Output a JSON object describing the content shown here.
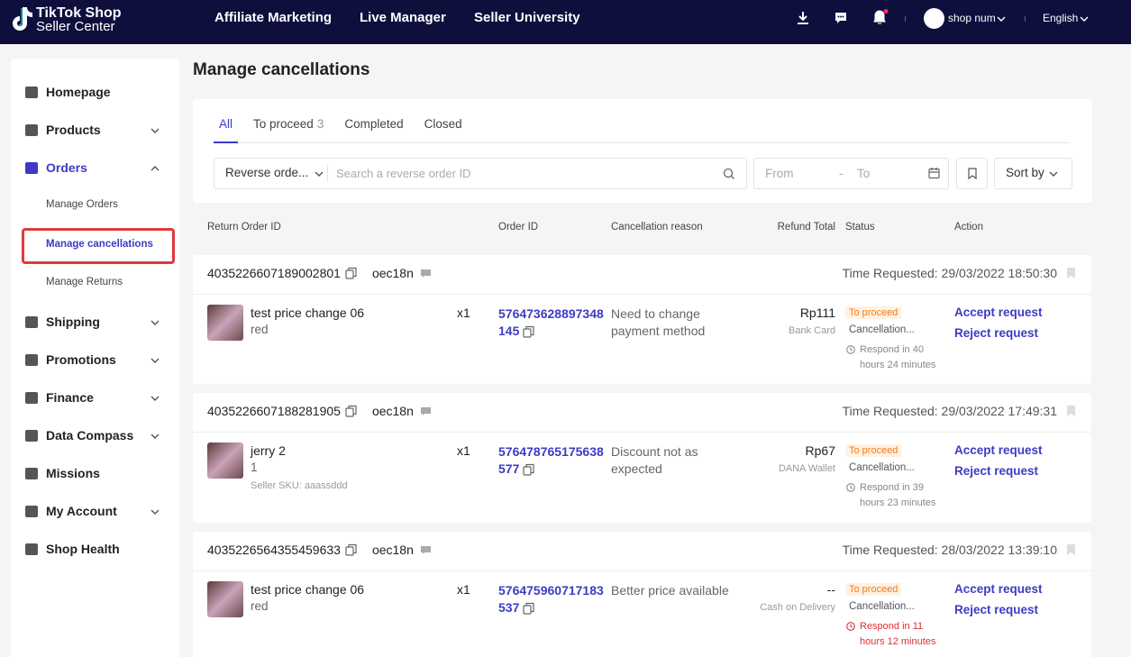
{
  "header": {
    "logo": [
      "TikTok Shop",
      "Seller Center"
    ],
    "nav": [
      "Affiliate Marketing",
      "Live Manager",
      "Seller University"
    ],
    "user": "shop num",
    "language": "English"
  },
  "sidebar": {
    "items": [
      {
        "label": "Homepage"
      },
      {
        "label": "Products",
        "expandable": true
      },
      {
        "label": "Orders",
        "expandable": true,
        "expanded": true,
        "children": [
          {
            "label": "Manage Orders"
          },
          {
            "label": "Manage cancellations",
            "active": true
          },
          {
            "label": "Manage Returns"
          }
        ]
      },
      {
        "label": "Shipping",
        "expandable": true
      },
      {
        "label": "Promotions",
        "expandable": true
      },
      {
        "label": "Finance",
        "expandable": true
      },
      {
        "label": "Data Compass",
        "expandable": true
      },
      {
        "label": "Missions"
      },
      {
        "label": "My Account",
        "expandable": true
      },
      {
        "label": "Shop Health"
      }
    ]
  },
  "page": {
    "title": "Manage cancellations"
  },
  "tabs": [
    {
      "label": "All",
      "active": true
    },
    {
      "label": "To proceed",
      "count": 3
    },
    {
      "label": "Completed"
    },
    {
      "label": "Closed"
    }
  ],
  "filters": {
    "search_type": "Reverse orde...",
    "search_placeholder": "Search a reverse order ID",
    "date_from": "From",
    "date_separator": "-",
    "date_to": "To",
    "sort": "Sort by"
  },
  "table": {
    "columns": [
      "Return Order ID",
      "Order ID",
      "Cancellation reason",
      "Refund Total",
      "Status",
      "Action"
    ],
    "orders": [
      {
        "return_id": "4035226607189002801",
        "buyer": "oec18n",
        "time_requested": "Time Requested: 29/03/2022 18:50:30",
        "product": {
          "name": "test price change 06",
          "variant": "red"
        },
        "quantity": "x1",
        "order_id": "576473628897348145",
        "reason": "Need to change payment method",
        "refund": "Rp111",
        "payment": "Bank Card",
        "status": "To proceed",
        "status_detail": "Cancellation...",
        "respond": "Respond in 40 hours 24 minutes",
        "urgent": false,
        "actions": [
          "Accept request",
          "Reject request"
        ]
      },
      {
        "return_id": "4035226607188281905",
        "buyer": "oec18n",
        "time_requested": "Time Requested: 29/03/2022 17:49:31",
        "product": {
          "name": "jerry 2",
          "variant": "1",
          "sku": "Seller SKU: aaassddd"
        },
        "quantity": "x1",
        "order_id": "576478765175638577",
        "reason": "Discount not as expected",
        "refund": "Rp67",
        "payment": "DANA Wallet",
        "status": "To proceed",
        "status_detail": "Cancellation...",
        "respond": "Respond in 39 hours 23 minutes",
        "urgent": false,
        "actions": [
          "Accept request",
          "Reject request"
        ]
      },
      {
        "return_id": "4035226564355459633",
        "buyer": "oec18n",
        "time_requested": "Time Requested: 28/03/2022 13:39:10",
        "product": {
          "name": "test price change 06",
          "variant": "red"
        },
        "quantity": "x1",
        "order_id": "576475960717183537",
        "reason": "Better price available",
        "refund": "--",
        "payment": "Cash on Delivery",
        "status": "To proceed",
        "status_detail": "Cancellation...",
        "respond": "Respond in 11 hours 12 minutes",
        "urgent": true,
        "actions": [
          "Accept request",
          "Reject request"
        ]
      }
    ]
  }
}
